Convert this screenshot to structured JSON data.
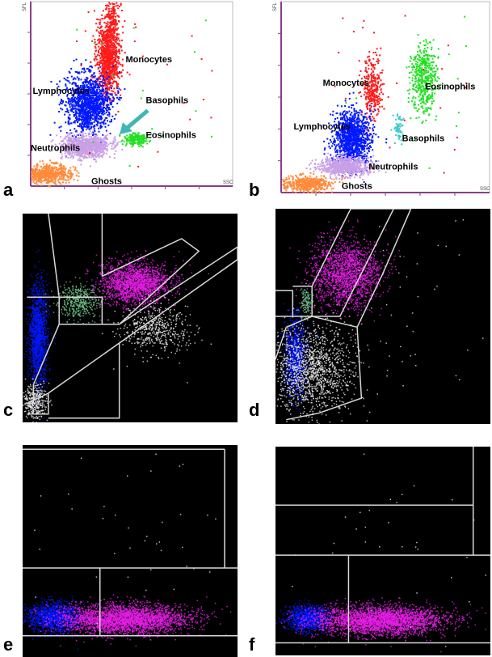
{
  "panel_labels": [
    "a",
    "b",
    "c",
    "d",
    "e",
    "f"
  ],
  "colors": {
    "lymphocytes": "#0018ff",
    "monocytes": "#ff1a1a",
    "neutrophils": "#c9a0e6",
    "eosinophils": "#22e022",
    "basophils": "#38c8c8",
    "ghosts": "#ff8a3a",
    "axis": "#8b3d8b",
    "arrow": "#40b6b6",
    "dark_bg": "#000000",
    "magenta": "#e81ee8",
    "gate_line": "#d8d8d8",
    "white_dots": "#e8e8e8",
    "green_dots": "#6ec08a"
  },
  "chart_data": [
    {
      "panel": "a",
      "type": "scatter",
      "xlabel": "SSC",
      "ylabel": "SFL",
      "annotations": [
        "Monocytes",
        "Lymphocytes",
        "Basophils",
        "Eosinophils",
        "Neutrophils",
        "Ghosts"
      ],
      "arrow_to": "Basophils",
      "clusters": [
        {
          "name": "Monocytes",
          "color": "monocytes",
          "cx": 0.38,
          "cy": 0.3,
          "sx": 0.03,
          "sy": 0.1,
          "n": 900
        },
        {
          "name": "Monocytes tail",
          "color": "monocytes",
          "cx": 0.4,
          "cy": 0.08,
          "sx": 0.02,
          "sy": 0.07,
          "n": 180
        },
        {
          "name": "Lymphocytes",
          "color": "lymphocytes",
          "cx": 0.28,
          "cy": 0.55,
          "sx": 0.055,
          "sy": 0.08,
          "n": 1200
        },
        {
          "name": "Neutrophils",
          "color": "neutrophils",
          "cx": 0.27,
          "cy": 0.78,
          "sx": 0.06,
          "sy": 0.03,
          "n": 900
        },
        {
          "name": "Eosinophils",
          "color": "eosinophils",
          "cx": 0.52,
          "cy": 0.74,
          "sx": 0.03,
          "sy": 0.018,
          "n": 180
        },
        {
          "name": "Ghosts",
          "color": "ghosts",
          "cx": 0.08,
          "cy": 0.93,
          "sx": 0.06,
          "sy": 0.025,
          "n": 550
        }
      ]
    },
    {
      "panel": "b",
      "type": "scatter",
      "xlabel": "SSC",
      "ylabel": "SFL",
      "annotations": [
        "Monocytes",
        "Eosinophils",
        "Lymphocytes",
        "Basophils",
        "Neutrophils",
        "Ghosts"
      ],
      "clusters": [
        {
          "name": "Monocytes",
          "color": "monocytes",
          "cx": 0.43,
          "cy": 0.45,
          "sx": 0.025,
          "sy": 0.08,
          "n": 300
        },
        {
          "name": "Lymphocytes",
          "color": "lymphocytes",
          "cx": 0.34,
          "cy": 0.71,
          "sx": 0.045,
          "sy": 0.07,
          "n": 1100
        },
        {
          "name": "Neutrophils",
          "color": "neutrophils",
          "cx": 0.3,
          "cy": 0.86,
          "sx": 0.06,
          "sy": 0.025,
          "n": 700
        },
        {
          "name": "Eosinophils",
          "color": "eosinophils",
          "cx": 0.68,
          "cy": 0.4,
          "sx": 0.03,
          "sy": 0.09,
          "n": 450
        },
        {
          "name": "Basophils",
          "color": "basophils",
          "cx": 0.56,
          "cy": 0.66,
          "sx": 0.012,
          "sy": 0.04,
          "n": 60
        },
        {
          "name": "Ghosts",
          "color": "ghosts",
          "cx": 0.12,
          "cy": 0.95,
          "sx": 0.06,
          "sy": 0.022,
          "n": 450
        }
      ]
    },
    {
      "panel": "c",
      "type": "scatter",
      "clusters": [
        {
          "color": "magenta",
          "cx": 0.52,
          "cy": 0.33,
          "sx": 0.08,
          "sy": 0.05,
          "n": 1800
        },
        {
          "color": "lymphocytes",
          "cx": 0.07,
          "cy": 0.58,
          "sx": 0.022,
          "sy": 0.12,
          "n": 1400
        },
        {
          "color": "green_dots",
          "cx": 0.26,
          "cy": 0.42,
          "sx": 0.05,
          "sy": 0.04,
          "n": 450
        },
        {
          "color": "white_dots",
          "cx": 0.61,
          "cy": 0.55,
          "sx": 0.08,
          "sy": 0.06,
          "n": 500
        },
        {
          "color": "white_dots",
          "cx": 0.05,
          "cy": 0.9,
          "sx": 0.03,
          "sy": 0.04,
          "n": 350
        }
      ],
      "gates": [
        [
          [
            0.02,
            0.4
          ],
          [
            0.17,
            0.4
          ],
          [
            0.17,
            0.53
          ],
          [
            0.05,
            0.82
          ],
          [
            0.05,
            0.91
          ],
          [
            0.02,
            0.91
          ]
        ],
        [
          [
            0.02,
            0.91
          ],
          [
            0.12,
            0.86
          ],
          [
            0.12,
            0.96
          ],
          [
            0.02,
            0.96
          ]
        ],
        [
          [
            0.17,
            0.4
          ],
          [
            0.37,
            0.4
          ],
          [
            0.37,
            0.53
          ],
          [
            0.17,
            0.53
          ]
        ],
        [
          [
            0.37,
            0.3
          ],
          [
            0.74,
            0.12
          ],
          [
            0.82,
            0.18
          ],
          [
            0.45,
            0.53
          ],
          [
            0.37,
            0.53
          ]
        ],
        [
          [
            0.45,
            0.53
          ],
          [
            1.0,
            0.16
          ],
          [
            1.0,
            0.22
          ],
          [
            0.45,
            0.62
          ]
        ],
        [
          [
            0.12,
            0.86
          ],
          [
            0.45,
            0.62
          ],
          [
            0.45,
            0.98
          ],
          [
            0.12,
            0.98
          ]
        ],
        [
          [
            0.12,
            0.0
          ],
          [
            0.17,
            0.4
          ]
        ],
        [
          [
            0.37,
            0.0
          ],
          [
            0.37,
            0.3
          ]
        ]
      ]
    },
    {
      "panel": "d",
      "type": "scatter",
      "clusters": [
        {
          "color": "magenta",
          "cx": 0.33,
          "cy": 0.3,
          "sx": 0.08,
          "sy": 0.08,
          "n": 1800
        },
        {
          "color": "lymphocytes",
          "cx": 0.09,
          "cy": 0.68,
          "sx": 0.025,
          "sy": 0.09,
          "n": 900
        },
        {
          "color": "white_dots",
          "cx": 0.16,
          "cy": 0.74,
          "sx": 0.1,
          "sy": 0.1,
          "n": 1500
        },
        {
          "color": "green_dots",
          "cx": 0.14,
          "cy": 0.43,
          "sx": 0.015,
          "sy": 0.03,
          "n": 120
        },
        {
          "color": "white_dots",
          "cx": 0.55,
          "cy": 0.55,
          "sx": 0.25,
          "sy": 0.25,
          "n": 60
        }
      ],
      "gates": [
        [
          [
            0.0,
            0.38
          ],
          [
            0.08,
            0.38
          ],
          [
            0.08,
            0.5
          ],
          [
            0.0,
            0.5
          ]
        ],
        [
          [
            0.08,
            0.36
          ],
          [
            0.17,
            0.36
          ],
          [
            0.17,
            0.5
          ],
          [
            0.08,
            0.5
          ]
        ],
        [
          [
            0.17,
            0.36
          ],
          [
            0.35,
            0.0
          ],
          [
            0.55,
            0.0
          ],
          [
            0.3,
            0.5
          ],
          [
            0.17,
            0.5
          ]
        ],
        [
          [
            0.05,
            0.55
          ],
          [
            0.17,
            0.5
          ],
          [
            0.38,
            0.55
          ],
          [
            0.4,
            0.88
          ],
          [
            0.2,
            0.95
          ],
          [
            0.05,
            0.98
          ]
        ],
        [
          [
            0.55,
            0.0
          ],
          [
            0.63,
            0.0
          ],
          [
            0.5,
            0.3
          ],
          [
            0.38,
            0.55
          ]
        ],
        [
          [
            0.0,
            0.7
          ],
          [
            0.05,
            0.55
          ]
        ]
      ]
    },
    {
      "panel": "e",
      "type": "scatter",
      "clusters": [
        {
          "color": "lymphocytes",
          "cx": 0.14,
          "cy": 0.81,
          "sx": 0.06,
          "sy": 0.035,
          "n": 1200
        },
        {
          "color": "magenta",
          "cx": 0.47,
          "cy": 0.82,
          "sx": 0.15,
          "sy": 0.035,
          "n": 3000
        },
        {
          "color": "white_dots",
          "cx": 0.55,
          "cy": 0.45,
          "sx": 0.3,
          "sy": 0.25,
          "n": 45
        }
      ],
      "lines": [
        [
          [
            0.0,
            0.02
          ],
          [
            0.94,
            0.02
          ]
        ],
        [
          [
            0.94,
            0.02
          ],
          [
            0.94,
            0.58
          ]
        ],
        [
          [
            0.0,
            0.58
          ],
          [
            1.0,
            0.58
          ]
        ],
        [
          [
            0.36,
            0.58
          ],
          [
            0.36,
            0.9
          ]
        ],
        [
          [
            0.0,
            0.9
          ],
          [
            1.0,
            0.9
          ]
        ]
      ]
    },
    {
      "panel": "f",
      "type": "scatter",
      "clusters": [
        {
          "color": "lymphocytes",
          "cx": 0.15,
          "cy": 0.82,
          "sx": 0.05,
          "sy": 0.03,
          "n": 1000
        },
        {
          "color": "magenta",
          "cx": 0.48,
          "cy": 0.83,
          "sx": 0.15,
          "sy": 0.035,
          "n": 3000
        },
        {
          "color": "white_dots",
          "cx": 0.55,
          "cy": 0.45,
          "sx": 0.3,
          "sy": 0.25,
          "n": 40
        }
      ],
      "lines": [
        [
          [
            0.0,
            0.28
          ],
          [
            0.92,
            0.28
          ]
        ],
        [
          [
            0.92,
            0.0
          ],
          [
            0.92,
            0.52
          ]
        ],
        [
          [
            0.0,
            0.52
          ],
          [
            1.0,
            0.52
          ]
        ],
        [
          [
            0.34,
            0.52
          ],
          [
            0.34,
            0.94
          ]
        ],
        [
          [
            0.0,
            0.94
          ],
          [
            1.0,
            0.94
          ]
        ]
      ]
    }
  ]
}
